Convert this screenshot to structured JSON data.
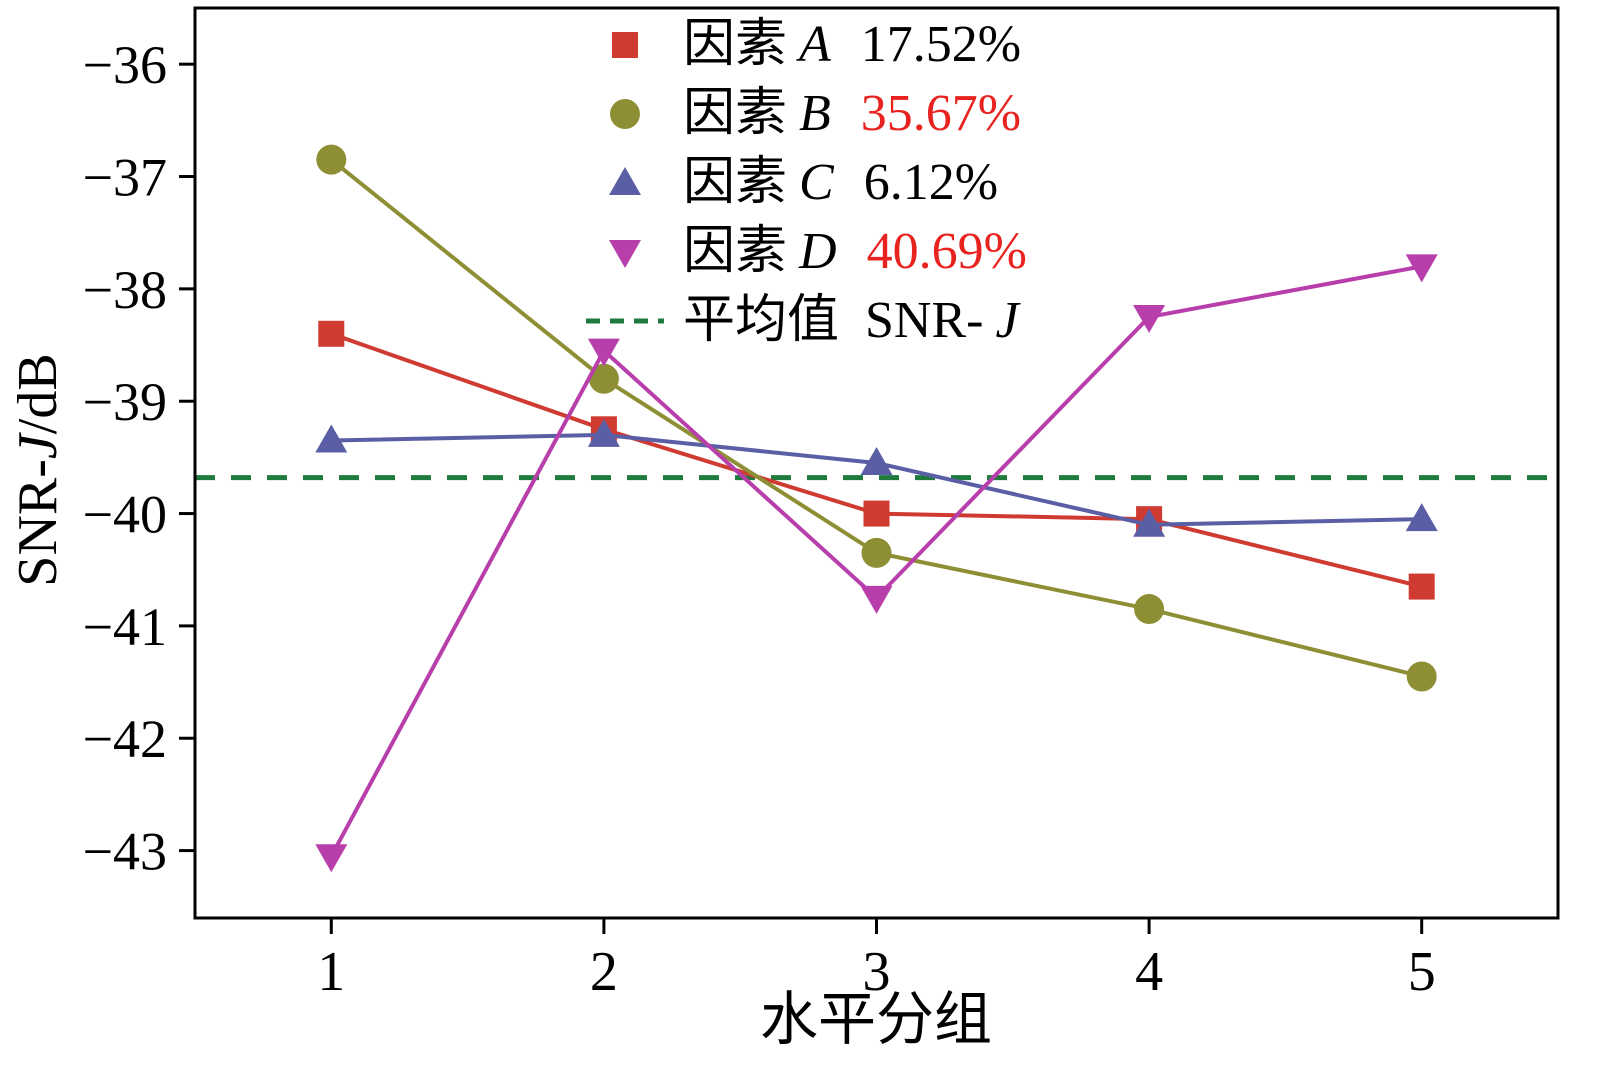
{
  "chart_data": {
    "type": "line",
    "x": [
      1,
      2,
      3,
      4,
      5
    ],
    "xlim": [
      0.5,
      5.5
    ],
    "ylim": [
      -43.6,
      -35.5
    ],
    "xticks": {
      "values": [
        1,
        2,
        3,
        4,
        5
      ],
      "labels": [
        "1",
        "2",
        "3",
        "4",
        "5"
      ]
    },
    "yticks": {
      "values": [
        -36,
        -37,
        -38,
        -39,
        -40,
        -41,
        -42,
        -43
      ],
      "labels": [
        "−36",
        "−37",
        "−38",
        "−39",
        "−40",
        "−41",
        "−42",
        "−43"
      ]
    },
    "xlabel": "水平分组",
    "ylabel_parts": {
      "upright1": "SNR-",
      "italic": "J",
      "upright2": "/dB"
    },
    "grid": false,
    "legend_position": "top-center-inside",
    "series": [
      {
        "name": "因素 A",
        "marker": "square",
        "color": "#cf3a31",
        "values": [
          -38.4,
          -39.25,
          -40.0,
          -40.05,
          -40.65
        ]
      },
      {
        "name": "因素 B",
        "marker": "circle",
        "color": "#8e8e35",
        "values": [
          -36.85,
          -38.8,
          -40.35,
          -40.85,
          -41.45
        ]
      },
      {
        "name": "因素 C",
        "marker": "triangle-up",
        "color": "#5a5fa5",
        "values": [
          -39.35,
          -39.3,
          -39.55,
          -40.1,
          -40.05
        ]
      },
      {
        "name": "因素 D",
        "marker": "triangle-down",
        "color": "#b83fab",
        "values": [
          -43.05,
          -38.55,
          -40.75,
          -38.25,
          -37.8
        ]
      }
    ],
    "mean_line": {
      "value": -39.68,
      "color": "#1f7a3e",
      "style": "dashed"
    },
    "legend": {
      "items": [
        {
          "prefix": "因素",
          "variable": "A",
          "percent": "17.52%",
          "percent_color": "#000000"
        },
        {
          "prefix": "因素",
          "variable": "B",
          "percent": "35.67%",
          "percent_color": "#e8231f"
        },
        {
          "prefix": "因素",
          "variable": "C",
          "percent": "6.12%",
          "percent_color": "#000000"
        },
        {
          "prefix": "因素",
          "variable": "D",
          "percent": "40.69%",
          "percent_color": "#e8231f"
        },
        {
          "prefix": "平均值",
          "variable_upright": "SNR-",
          "variable": "J"
        }
      ]
    }
  }
}
